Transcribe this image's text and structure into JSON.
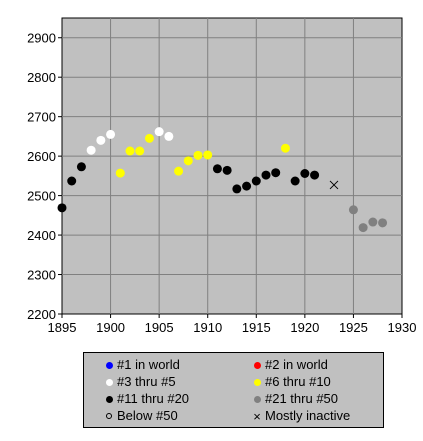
{
  "chart_data": {
    "type": "scatter",
    "title": "",
    "xlabel": "",
    "ylabel": "",
    "xlim": [
      1895,
      1930
    ],
    "ylim": [
      2200,
      2950
    ],
    "x_ticks": [
      "1895",
      "1900",
      "1905",
      "1910",
      "1915",
      "1920",
      "1925",
      "1930"
    ],
    "y_ticks": [
      "2200",
      "2300",
      "2400",
      "2500",
      "2600",
      "2700",
      "2800",
      "2900"
    ],
    "grid": true,
    "legend_placement": "bottom",
    "colors": {
      "plot_background": "#c0c0c0",
      "grid": "#808080",
      "rank_1": "#0000ff",
      "rank_2": "#ff0000",
      "rank_3_5": "#ffffff",
      "rank_6_10": "#ffff00",
      "rank_11_20": "#000000",
      "rank_21_50": "#808080"
    },
    "series": [
      {
        "name": "#1 in world",
        "key": "rank_1",
        "points": []
      },
      {
        "name": "#2 in world",
        "key": "rank_2",
        "points": []
      },
      {
        "name": "#3 thru #5",
        "key": "rank_3_5",
        "points": [
          [
            1898,
            2615
          ],
          [
            1899,
            2640
          ],
          [
            1900,
            2655
          ],
          [
            1905,
            2662
          ],
          [
            1906,
            2650
          ]
        ]
      },
      {
        "name": "#6 thru #10",
        "key": "rank_6_10",
        "points": [
          [
            1901,
            2557
          ],
          [
            1902,
            2613
          ],
          [
            1903,
            2613
          ],
          [
            1904,
            2645
          ],
          [
            1907,
            2562
          ],
          [
            1908,
            2588
          ],
          [
            1909,
            2602
          ],
          [
            1910,
            2603
          ],
          [
            1918,
            2620
          ]
        ]
      },
      {
        "name": "#11 thru #20",
        "key": "rank_11_20",
        "points": [
          [
            1895,
            2469
          ],
          [
            1896,
            2537
          ],
          [
            1897,
            2573
          ],
          [
            1911,
            2568
          ],
          [
            1912,
            2564
          ],
          [
            1913,
            2517
          ],
          [
            1914,
            2524
          ],
          [
            1915,
            2537
          ],
          [
            1916,
            2552
          ],
          [
            1917,
            2558
          ],
          [
            1919,
            2537
          ],
          [
            1920,
            2556
          ],
          [
            1921,
            2552
          ]
        ]
      },
      {
        "name": "#21 thru #50",
        "key": "rank_21_50",
        "points": [
          [
            1925,
            2464
          ],
          [
            1926,
            2419
          ],
          [
            1927,
            2433
          ],
          [
            1928,
            2431
          ]
        ]
      },
      {
        "name": "Below #50",
        "key": "below_50",
        "points": []
      },
      {
        "name": "Mostly inactive",
        "key": "inactive",
        "points": [
          [
            1923,
            2527
          ]
        ]
      }
    ]
  },
  "legend": {
    "items": [
      {
        "label": "#1 in world",
        "marker": "dot",
        "color": "#0000ff"
      },
      {
        "label": "#2 in world",
        "marker": "dot",
        "color": "#ff0000"
      },
      {
        "label": "#3 thru #5",
        "marker": "dot",
        "color": "#ffffff"
      },
      {
        "label": "#6 thru #10",
        "marker": "dot",
        "color": "#ffff00"
      },
      {
        "label": "#11 thru #20",
        "marker": "dot",
        "color": "#000000"
      },
      {
        "label": "#21 thru #50",
        "marker": "dot",
        "color": "#808080"
      },
      {
        "label": "Below #50",
        "marker": "open-circle",
        "color": "#000000"
      },
      {
        "label": "Mostly inactive",
        "marker": "x",
        "color": "#000000"
      }
    ]
  }
}
